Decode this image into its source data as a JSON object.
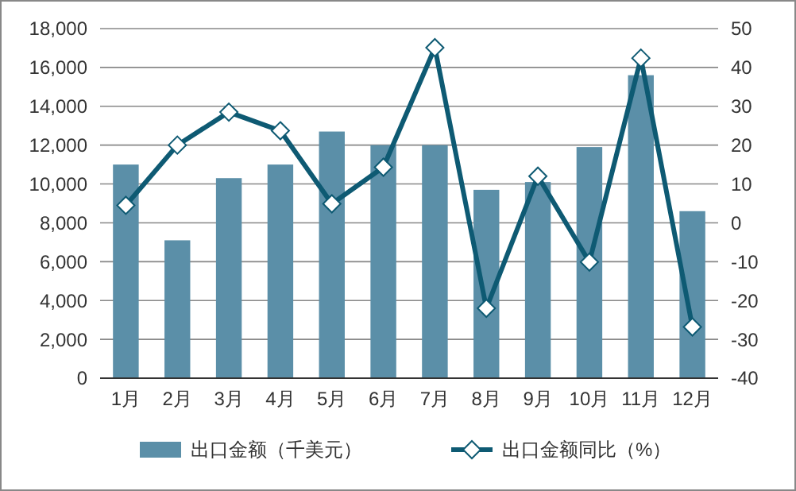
{
  "chart_data": {
    "type": "bar",
    "categories": [
      "1月",
      "2月",
      "3月",
      "4月",
      "5月",
      "6月",
      "7月",
      "8月",
      "9月",
      "10月",
      "11月",
      "12月"
    ],
    "series": [
      {
        "name": "出口金额（千美元）",
        "color": "#5b8fa8",
        "values": [
          11000,
          7100,
          10300,
          11000,
          12700,
          12000,
          12000,
          9700,
          10100,
          11900,
          15600,
          8600
        ]
      },
      {
        "name": "出口金额同比（%）",
        "type": "line",
        "axis": "y2",
        "color": "#0e5a73",
        "marker": "diamond",
        "values": [
          4.5,
          20,
          28.5,
          23.7,
          4.9,
          14.3,
          45.1,
          -22,
          12,
          -10.1,
          42.4,
          -26.8
        ]
      }
    ],
    "ylim": [
      0,
      18000
    ],
    "yticks": [
      {
        "value": 0,
        "label": "0"
      },
      {
        "value": 2000,
        "label": "2,000"
      },
      {
        "value": 4000,
        "label": "4,000"
      },
      {
        "value": 6000,
        "label": "6,000"
      },
      {
        "value": 8000,
        "label": "8,000"
      },
      {
        "value": 10000,
        "label": "10,000"
      },
      {
        "value": 12000,
        "label": "12,000"
      },
      {
        "value": 14000,
        "label": "14,000"
      },
      {
        "value": 16000,
        "label": "16,000"
      },
      {
        "value": 18000,
        "label": "18,000"
      }
    ],
    "y2lim": [
      -40,
      50
    ],
    "y2ticks": [
      -40,
      -30,
      -20,
      -10,
      0,
      10,
      20,
      30,
      40,
      50
    ],
    "grid": "y",
    "legend": "bottom"
  }
}
